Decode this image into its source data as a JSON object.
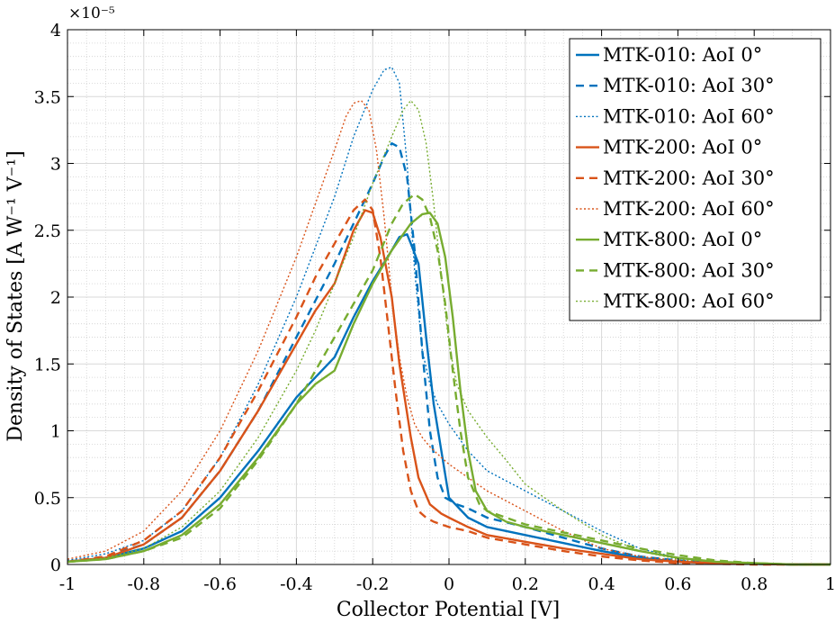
{
  "chart_data": {
    "type": "line",
    "xlabel": "Collector Potential [V]",
    "ylabel": "Density of States [A W⁻¹ V⁻¹]",
    "y_multiplier": "×10⁻⁵",
    "xlim": [
      -1,
      1
    ],
    "ylim": [
      0,
      4
    ],
    "xticks": [
      "-1",
      "-0.8",
      "-0.6",
      "-0.4",
      "-0.2",
      "0",
      "0.2",
      "0.4",
      "0.6",
      "0.8",
      "1"
    ],
    "yticks": [
      "0",
      "0.5",
      "1",
      "1.5",
      "2",
      "2.5",
      "3",
      "3.5",
      "4"
    ],
    "grid": true,
    "legend_position": "top-right",
    "colors": {
      "MTK-010": "#0072BD",
      "MTK-200": "#D95319",
      "MTK-800": "#77AC30"
    },
    "series": [
      {
        "name": "MTK-010: AoI 0°",
        "color": "#0072BD",
        "style": "solid",
        "x": [
          -1,
          -0.9,
          -0.8,
          -0.7,
          -0.6,
          -0.5,
          -0.4,
          -0.35,
          -0.3,
          -0.25,
          -0.2,
          -0.15,
          -0.13,
          -0.11,
          -0.1,
          -0.08,
          -0.06,
          -0.04,
          -0.02,
          0,
          0.05,
          0.1,
          0.2,
          0.3,
          0.4,
          0.5,
          0.6,
          0.7,
          0.8,
          0.9,
          1
        ],
        "y": [
          0.02,
          0.05,
          0.12,
          0.25,
          0.5,
          0.85,
          1.25,
          1.4,
          1.55,
          1.85,
          2.12,
          2.35,
          2.45,
          2.47,
          2.4,
          2.25,
          1.7,
          1.2,
          0.85,
          0.5,
          0.35,
          0.28,
          0.22,
          0.16,
          0.1,
          0.05,
          0.02,
          0.01,
          0.005,
          0,
          0
        ]
      },
      {
        "name": "MTK-010: AoI 30°",
        "color": "#0072BD",
        "style": "dashed",
        "x": [
          -1,
          -0.9,
          -0.8,
          -0.7,
          -0.6,
          -0.5,
          -0.4,
          -0.3,
          -0.25,
          -0.2,
          -0.17,
          -0.15,
          -0.13,
          -0.11,
          -0.09,
          -0.07,
          -0.05,
          -0.03,
          -0.01,
          0.02,
          0.05,
          0.1,
          0.2,
          0.3,
          0.4,
          0.5,
          0.6,
          0.7,
          0.8,
          0.9,
          1
        ],
        "y": [
          0.02,
          0.06,
          0.15,
          0.35,
          0.7,
          1.15,
          1.7,
          2.25,
          2.55,
          2.85,
          3.05,
          3.15,
          3.12,
          2.9,
          2.35,
          1.6,
          1.0,
          0.65,
          0.5,
          0.45,
          0.42,
          0.35,
          0.28,
          0.2,
          0.12,
          0.06,
          0.03,
          0.01,
          0.005,
          0,
          0
        ]
      },
      {
        "name": "MTK-010: AoI 60°",
        "color": "#0072BD",
        "style": "dotted",
        "x": [
          -1,
          -0.9,
          -0.8,
          -0.7,
          -0.6,
          -0.5,
          -0.4,
          -0.3,
          -0.25,
          -0.2,
          -0.17,
          -0.15,
          -0.13,
          -0.11,
          -0.09,
          -0.07,
          -0.05,
          -0.03,
          0,
          0.05,
          0.1,
          0.2,
          0.3,
          0.4,
          0.5,
          0.6,
          0.7,
          0.8,
          0.9,
          1
        ],
        "y": [
          0.03,
          0.08,
          0.18,
          0.4,
          0.8,
          1.35,
          2.0,
          2.75,
          3.2,
          3.55,
          3.7,
          3.72,
          3.6,
          3.0,
          2.2,
          1.6,
          1.35,
          1.2,
          1.05,
          0.85,
          0.7,
          0.55,
          0.4,
          0.25,
          0.12,
          0.05,
          0.02,
          0.01,
          0,
          0
        ]
      },
      {
        "name": "MTK-200: AoI 0°",
        "color": "#D95319",
        "style": "solid",
        "x": [
          -1,
          -0.9,
          -0.8,
          -0.7,
          -0.6,
          -0.5,
          -0.4,
          -0.35,
          -0.3,
          -0.25,
          -0.22,
          -0.2,
          -0.18,
          -0.15,
          -0.13,
          -0.1,
          -0.08,
          -0.05,
          -0.02,
          0,
          0.05,
          0.1,
          0.2,
          0.3,
          0.4,
          0.5,
          0.6,
          0.7,
          0.8,
          0.9,
          1
        ],
        "y": [
          0.02,
          0.05,
          0.15,
          0.35,
          0.7,
          1.15,
          1.65,
          1.9,
          2.1,
          2.5,
          2.65,
          2.63,
          2.45,
          2.0,
          1.5,
          0.95,
          0.65,
          0.45,
          0.38,
          0.35,
          0.28,
          0.22,
          0.17,
          0.12,
          0.08,
          0.04,
          0.02,
          0.01,
          0.005,
          0,
          0
        ]
      },
      {
        "name": "MTK-200: AoI 30°",
        "color": "#D95319",
        "style": "dashed",
        "x": [
          -1,
          -0.9,
          -0.8,
          -0.7,
          -0.6,
          -0.5,
          -0.4,
          -0.35,
          -0.3,
          -0.25,
          -0.22,
          -0.2,
          -0.18,
          -0.16,
          -0.14,
          -0.12,
          -0.1,
          -0.08,
          -0.06,
          -0.04,
          -0.02,
          0,
          0.05,
          0.1,
          0.2,
          0.3,
          0.4,
          0.5,
          0.6,
          0.7,
          0.8,
          0.9,
          1
        ],
        "y": [
          0.02,
          0.06,
          0.18,
          0.4,
          0.8,
          1.3,
          1.85,
          2.15,
          2.4,
          2.65,
          2.73,
          2.65,
          2.3,
          1.8,
          1.3,
          0.85,
          0.55,
          0.4,
          0.35,
          0.32,
          0.3,
          0.28,
          0.25,
          0.2,
          0.15,
          0.1,
          0.06,
          0.03,
          0.01,
          0.005,
          0,
          0,
          0
        ]
      },
      {
        "name": "MTK-200: AoI 60°",
        "color": "#D95319",
        "style": "dotted",
        "x": [
          -1,
          -0.9,
          -0.8,
          -0.7,
          -0.6,
          -0.5,
          -0.4,
          -0.35,
          -0.3,
          -0.27,
          -0.25,
          -0.23,
          -0.21,
          -0.19,
          -0.17,
          -0.15,
          -0.13,
          -0.11,
          -0.09,
          -0.07,
          -0.05,
          -0.02,
          0,
          0.05,
          0.1,
          0.2,
          0.3,
          0.4,
          0.5,
          0.6,
          0.7,
          0.8,
          0.9,
          1
        ],
        "y": [
          0.04,
          0.1,
          0.25,
          0.55,
          1.0,
          1.6,
          2.3,
          2.7,
          3.1,
          3.35,
          3.45,
          3.47,
          3.4,
          3.1,
          2.6,
          2.0,
          1.55,
          1.25,
          1.05,
          0.95,
          0.88,
          0.8,
          0.75,
          0.65,
          0.55,
          0.4,
          0.25,
          0.12,
          0.06,
          0.03,
          0.01,
          0.005,
          0,
          0
        ]
      },
      {
        "name": "MTK-800: AoI 0°",
        "color": "#77AC30",
        "style": "solid",
        "x": [
          -1,
          -0.9,
          -0.8,
          -0.7,
          -0.6,
          -0.5,
          -0.4,
          -0.35,
          -0.3,
          -0.25,
          -0.2,
          -0.15,
          -0.1,
          -0.07,
          -0.05,
          -0.03,
          -0.01,
          0.01,
          0.03,
          0.05,
          0.07,
          0.1,
          0.15,
          0.2,
          0.3,
          0.4,
          0.5,
          0.6,
          0.7,
          0.8,
          0.9,
          1
        ],
        "y": [
          0.02,
          0.04,
          0.1,
          0.22,
          0.45,
          0.8,
          1.2,
          1.35,
          1.45,
          1.8,
          2.1,
          2.35,
          2.55,
          2.62,
          2.63,
          2.55,
          2.3,
          1.85,
          1.3,
          0.85,
          0.55,
          0.4,
          0.32,
          0.28,
          0.22,
          0.16,
          0.1,
          0.05,
          0.02,
          0.01,
          0,
          0
        ]
      },
      {
        "name": "MTK-800: AoI 30°",
        "color": "#77AC30",
        "style": "dashed",
        "x": [
          -1,
          -0.9,
          -0.8,
          -0.7,
          -0.6,
          -0.5,
          -0.4,
          -0.35,
          -0.3,
          -0.25,
          -0.2,
          -0.15,
          -0.12,
          -0.09,
          -0.07,
          -0.05,
          -0.03,
          -0.01,
          0.01,
          0.03,
          0.05,
          0.08,
          0.1,
          0.15,
          0.2,
          0.3,
          0.4,
          0.5,
          0.6,
          0.7,
          0.8,
          0.9,
          1
        ],
        "y": [
          0.02,
          0.04,
          0.1,
          0.2,
          0.42,
          0.78,
          1.2,
          1.45,
          1.7,
          1.95,
          2.2,
          2.55,
          2.7,
          2.77,
          2.73,
          2.6,
          2.35,
          1.95,
          1.45,
          1.0,
          0.65,
          0.45,
          0.4,
          0.35,
          0.3,
          0.24,
          0.18,
          0.12,
          0.07,
          0.03,
          0.01,
          0,
          0
        ]
      },
      {
        "name": "MTK-800: AoI 60°",
        "color": "#77AC30",
        "style": "dotted",
        "x": [
          -1,
          -0.9,
          -0.8,
          -0.7,
          -0.6,
          -0.5,
          -0.4,
          -0.35,
          -0.3,
          -0.25,
          -0.2,
          -0.15,
          -0.12,
          -0.1,
          -0.08,
          -0.06,
          -0.04,
          -0.02,
          0,
          0.02,
          0.05,
          0.1,
          0.15,
          0.2,
          0.3,
          0.4,
          0.5,
          0.6,
          0.7,
          0.8,
          0.9,
          1
        ],
        "y": [
          0.02,
          0.05,
          0.12,
          0.28,
          0.55,
          0.95,
          1.45,
          1.75,
          2.1,
          2.45,
          2.85,
          3.2,
          3.4,
          3.47,
          3.4,
          3.15,
          2.7,
          2.15,
          1.65,
          1.35,
          1.15,
          0.95,
          0.78,
          0.6,
          0.4,
          0.22,
          0.1,
          0.04,
          0.02,
          0.01,
          0,
          0
        ]
      }
    ]
  }
}
